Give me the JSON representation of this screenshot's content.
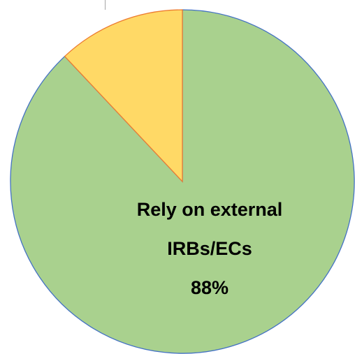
{
  "chart_data": {
    "type": "pie",
    "categories": [
      "Rely on external IRBs/ECs",
      null
    ],
    "values": [
      88,
      12
    ],
    "value_labels": [
      "88%",
      null
    ],
    "colors": [
      "#a9d18e",
      "#ffd966"
    ],
    "edge_colors": [
      "#4472c4",
      "#ed7d31"
    ]
  }
}
